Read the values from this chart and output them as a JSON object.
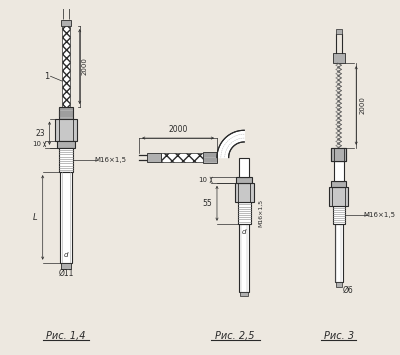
{
  "bg_color": "#ede8e0",
  "line_color": "#2a2a2a",
  "gray1": "#c8c8c8",
  "gray2": "#b0b0b0",
  "gray3": "#d8d8d8",
  "fig1_label": "Рис. 1,4",
  "fig2_label": "Рис. 2,5",
  "fig3_label": "Рис. 3"
}
